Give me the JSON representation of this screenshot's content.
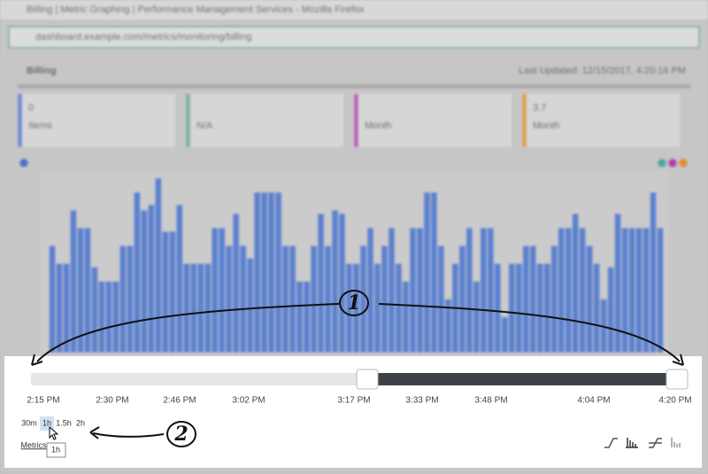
{
  "window": {
    "title": "Billing | Metric Graphing | Performance Management Services - Mozilla Firefox"
  },
  "address_bar": {
    "url": "dashboard.example.com/metrics/monitoring/billing"
  },
  "page": {
    "title": "Billing",
    "last_updated": "Last Updated: 12/15/2017, 4:20:16 PM"
  },
  "cards": [
    {
      "value": "0",
      "label": "Items"
    },
    {
      "label": "N/A"
    },
    {
      "label": "Month"
    },
    {
      "value": "3.7",
      "label": "Month"
    }
  ],
  "background_chart": {
    "type": "bar",
    "color": "#5a82cf",
    "ylim": [
      0,
      100
    ],
    "values": [
      60,
      50,
      50,
      80,
      70,
      70,
      48,
      40,
      40,
      40,
      60,
      60,
      90,
      80,
      83,
      98,
      68,
      68,
      83,
      50,
      50,
      50,
      50,
      70,
      70,
      60,
      78,
      60,
      53,
      90,
      90,
      90,
      90,
      60,
      60,
      40,
      40,
      60,
      78,
      60,
      80,
      78,
      50,
      50,
      60,
      70,
      50,
      60,
      70,
      50,
      40,
      70,
      70,
      90,
      90,
      60,
      30,
      50,
      60,
      70,
      40,
      70,
      70,
      50,
      20,
      50,
      50,
      60,
      60,
      50,
      50,
      60,
      70,
      70,
      78,
      70,
      60,
      50,
      30,
      48,
      78,
      70,
      70,
      70,
      70,
      90,
      70
    ]
  },
  "time_axis": {
    "labels": [
      "2:15 PM",
      "2:30 PM",
      "2:46 PM",
      "3:02 PM",
      "3:17 PM",
      "3:33 PM",
      "3:48 PM",
      "4:04 PM",
      "4:20 PM"
    ]
  },
  "range_buttons": [
    "30m",
    "1h",
    "1.5h",
    "2h"
  ],
  "metrics_link": "Metrics",
  "tooltip": "1h",
  "annotations": [
    "1",
    "2"
  ]
}
